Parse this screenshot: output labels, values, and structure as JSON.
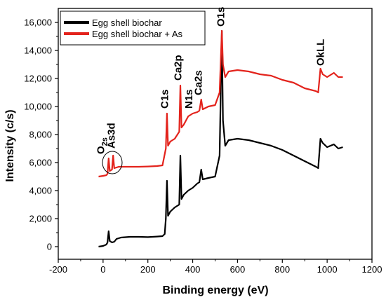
{
  "chart_data": {
    "type": "line",
    "xlabel": "Binding energy (eV)",
    "ylabel": "Intensity (c/s)",
    "xlim": [
      -200,
      1200
    ],
    "ylim": [
      -900,
      17000
    ],
    "xticks": [
      -200,
      0,
      200,
      400,
      600,
      800,
      1000,
      1200
    ],
    "xtick_labels": [
      "-200",
      "0",
      "200",
      "400",
      "600",
      "800",
      "1000",
      "1200"
    ],
    "yticks": [
      0,
      2000,
      4000,
      6000,
      8000,
      10000,
      12000,
      14000,
      16000
    ],
    "ytick_labels": [
      "0",
      "2,000",
      "4,000",
      "6,000",
      "8,000",
      "10,000",
      "12,000",
      "14,000",
      "16,000"
    ],
    "legend_position": "top-left",
    "series": [
      {
        "name": "Egg shell biochar",
        "color": "#000000",
        "points": [
          [
            -20,
            0
          ],
          [
            0,
            50
          ],
          [
            15,
            150
          ],
          [
            20,
            300
          ],
          [
            25,
            1100
          ],
          [
            30,
            400
          ],
          [
            40,
            300
          ],
          [
            50,
            350
          ],
          [
            60,
            550
          ],
          [
            70,
            600
          ],
          [
            80,
            650
          ],
          [
            120,
            700
          ],
          [
            160,
            700
          ],
          [
            200,
            680
          ],
          [
            240,
            720
          ],
          [
            265,
            750
          ],
          [
            275,
            900
          ],
          [
            280,
            2000
          ],
          [
            285,
            4700
          ],
          [
            290,
            2200
          ],
          [
            300,
            2500
          ],
          [
            320,
            2800
          ],
          [
            340,
            3000
          ],
          [
            345,
            6500
          ],
          [
            350,
            3400
          ],
          [
            360,
            3700
          ],
          [
            380,
            4000
          ],
          [
            400,
            4200
          ],
          [
            420,
            4500
          ],
          [
            430,
            4600
          ],
          [
            438,
            5500
          ],
          [
            445,
            4800
          ],
          [
            470,
            4900
          ],
          [
            500,
            5000
          ],
          [
            520,
            6500
          ],
          [
            530,
            15400
          ],
          [
            535,
            9000
          ],
          [
            545,
            7200
          ],
          [
            560,
            7600
          ],
          [
            600,
            7700
          ],
          [
            650,
            7600
          ],
          [
            700,
            7400
          ],
          [
            750,
            7200
          ],
          [
            800,
            6900
          ],
          [
            850,
            6500
          ],
          [
            900,
            6100
          ],
          [
            950,
            5700
          ],
          [
            960,
            5600
          ],
          [
            970,
            7700
          ],
          [
            980,
            7400
          ],
          [
            1000,
            7100
          ],
          [
            1030,
            7300
          ],
          [
            1050,
            7000
          ],
          [
            1070,
            7100
          ]
        ]
      },
      {
        "name": "Egg shell biochar + As",
        "color": "#e3231c",
        "points": [
          [
            -20,
            5000
          ],
          [
            0,
            5050
          ],
          [
            15,
            5100
          ],
          [
            20,
            5200
          ],
          [
            25,
            6300
          ],
          [
            30,
            5400
          ],
          [
            40,
            5500
          ],
          [
            45,
            6500
          ],
          [
            50,
            5600
          ],
          [
            70,
            5700
          ],
          [
            120,
            5700
          ],
          [
            160,
            5700
          ],
          [
            200,
            5720
          ],
          [
            240,
            5750
          ],
          [
            265,
            5800
          ],
          [
            280,
            7000
          ],
          [
            285,
            9500
          ],
          [
            290,
            7200
          ],
          [
            300,
            7500
          ],
          [
            320,
            7700
          ],
          [
            340,
            8200
          ],
          [
            345,
            11500
          ],
          [
            350,
            8500
          ],
          [
            360,
            8700
          ],
          [
            380,
            9300
          ],
          [
            400,
            9500
          ],
          [
            420,
            9600
          ],
          [
            430,
            9700
          ],
          [
            438,
            10500
          ],
          [
            445,
            9800
          ],
          [
            470,
            10000
          ],
          [
            500,
            10100
          ],
          [
            520,
            11000
          ],
          [
            530,
            15400
          ],
          [
            535,
            13000
          ],
          [
            545,
            12100
          ],
          [
            560,
            12500
          ],
          [
            600,
            12600
          ],
          [
            650,
            12500
          ],
          [
            700,
            12300
          ],
          [
            750,
            12200
          ],
          [
            800,
            11900
          ],
          [
            850,
            11700
          ],
          [
            900,
            11300
          ],
          [
            950,
            11100
          ],
          [
            960,
            11000
          ],
          [
            970,
            12700
          ],
          [
            980,
            12300
          ],
          [
            1000,
            12100
          ],
          [
            1030,
            12400
          ],
          [
            1050,
            12100
          ],
          [
            1070,
            12100
          ]
        ]
      }
    ],
    "annotations": [
      {
        "main": "O",
        "sub": "2s",
        "x": 5,
        "y": 6600,
        "rotate": -90
      },
      {
        "main": "As3d",
        "sub": "",
        "x": 52,
        "y": 7000,
        "rotate": -90
      },
      {
        "main": "C1s",
        "sub": "",
        "x": 290,
        "y": 9850,
        "rotate": -90
      },
      {
        "main": "Ca2p",
        "sub": "",
        "x": 350,
        "y": 11850,
        "rotate": -90
      },
      {
        "main": "N1s",
        "sub": "",
        "x": 398,
        "y": 9850,
        "rotate": -90
      },
      {
        "main": "Ca2s",
        "sub": "",
        "x": 440,
        "y": 10800,
        "rotate": -90
      },
      {
        "main": "O1s",
        "sub": "",
        "x": 540,
        "y": 15700,
        "rotate": -90
      },
      {
        "main": "OkLL",
        "sub": "",
        "x": 985,
        "y": 12900,
        "rotate": -90
      }
    ]
  }
}
